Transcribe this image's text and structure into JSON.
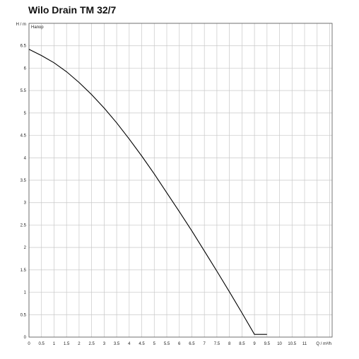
{
  "chart_data": {
    "type": "line",
    "title": "Wilo Drain TM 32/7",
    "ylabel": "H / m",
    "xlabel": "Q / m³/h",
    "series_label": "Напор",
    "xlim": [
      0,
      12.1
    ],
    "ylim": [
      0,
      7
    ],
    "x_ticks": [
      "0",
      "0.5",
      "1",
      "1.5",
      "2",
      "2.5",
      "3",
      "3.5",
      "4",
      "4.5",
      "5",
      "5.5",
      "6",
      "6.5",
      "7",
      "7.5",
      "8",
      "8.5",
      "9",
      "9.5",
      "10",
      "10.5",
      "11"
    ],
    "y_ticks": [
      "0",
      "0.5",
      "1",
      "1.5",
      "2",
      "2.5",
      "3",
      "3.5",
      "4",
      "4.5",
      "5",
      "5.5",
      "6",
      "6.5"
    ],
    "grid": true,
    "colors": {
      "line": "#000000",
      "grid": "#c8c8c8",
      "axis": "#555555"
    },
    "series": [
      {
        "x": [
          0,
          0.5,
          1,
          1.5,
          2,
          2.5,
          3,
          3.5,
          4,
          4.5,
          5,
          5.5,
          6,
          6.5,
          7,
          7.5,
          8,
          8.5,
          9,
          9.5
        ],
        "values": [
          6.42,
          6.28,
          6.12,
          5.92,
          5.68,
          5.41,
          5.11,
          4.78,
          4.42,
          4.04,
          3.64,
          3.22,
          2.8,
          2.37,
          1.92,
          1.47,
          1.01,
          0.54,
          0.06,
          -0.42
        ]
      }
    ]
  }
}
